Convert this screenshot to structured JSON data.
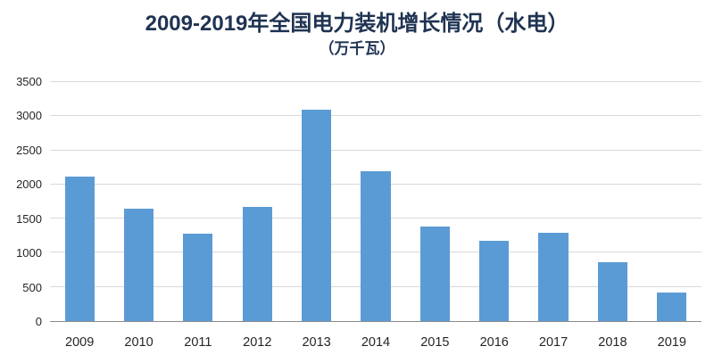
{
  "chart_data": {
    "type": "bar",
    "title": "2009-2019年全国电力装机增长情况（水电）",
    "subtitle": "（万千瓦）",
    "categories": [
      "2009",
      "2010",
      "2011",
      "2012",
      "2013",
      "2014",
      "2015",
      "2016",
      "2017",
      "2018",
      "2019"
    ],
    "values": [
      2110,
      1640,
      1280,
      1670,
      3100,
      2190,
      1380,
      1170,
      1290,
      860,
      420
    ],
    "xlabel": "",
    "ylabel": "",
    "ylim": [
      0,
      3500
    ],
    "ytick_step": 500,
    "yticks": [
      0,
      500,
      1000,
      1500,
      2000,
      2500,
      3000,
      3500
    ],
    "bar_color": "#5B9BD5",
    "gridline_color": "#D9D9D9",
    "axis_line_color": "#8C8C8C",
    "title_color": "#1F3352",
    "grid": true,
    "legend": "none"
  }
}
